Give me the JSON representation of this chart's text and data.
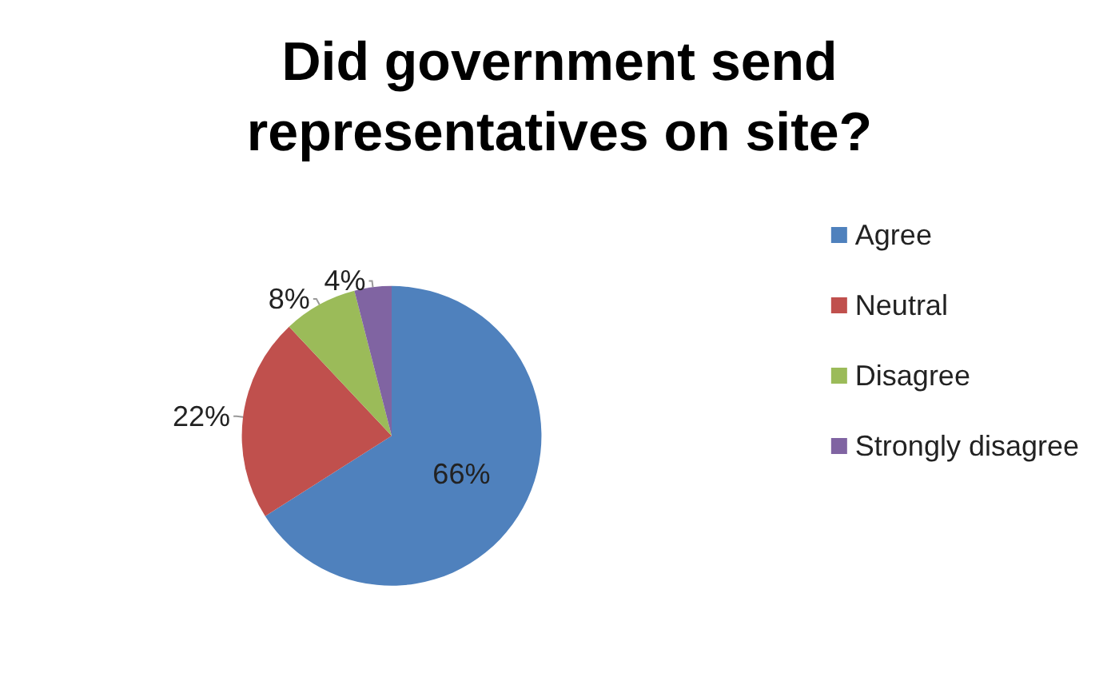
{
  "chart_data": {
    "type": "pie",
    "title": "Did government send\nrepresentatives on site?",
    "categories": [
      "Agree",
      "Neutral",
      "Disagree",
      "Strongly disagree"
    ],
    "values": [
      66,
      22,
      8,
      4
    ],
    "colors": [
      "#4f81bd",
      "#c0504d",
      "#9bbb59",
      "#8064a2"
    ],
    "value_labels": [
      "66%",
      "22%",
      "8%",
      "4%"
    ],
    "legend": "right"
  }
}
